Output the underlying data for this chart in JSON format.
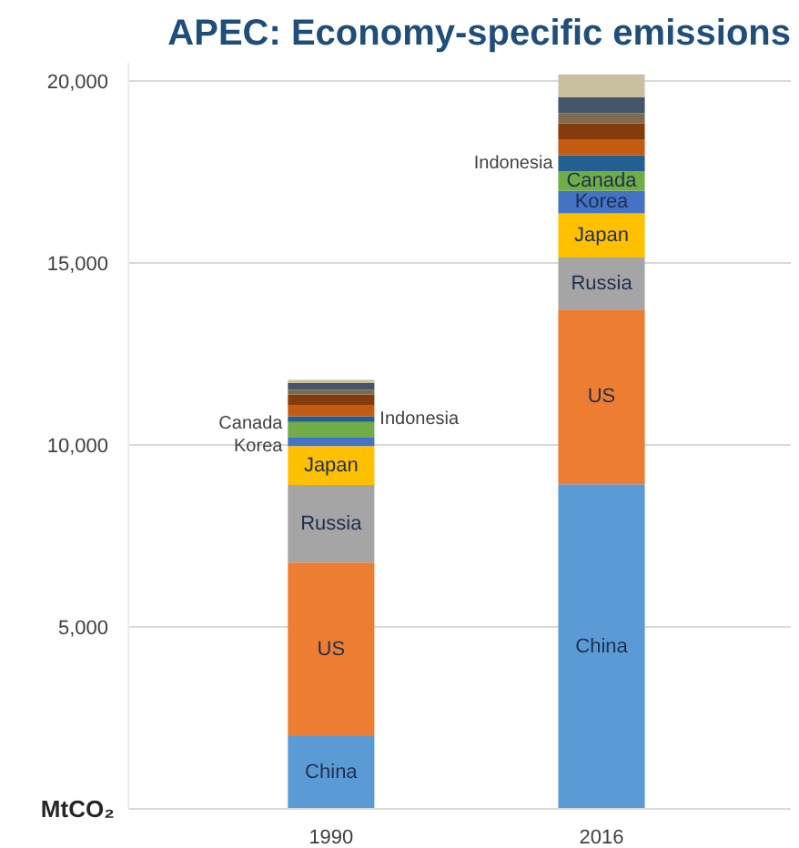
{
  "chart_data": {
    "type": "bar",
    "stacked": true,
    "title": "APEC: Economy-specific emissions",
    "ylabel": "MtCO₂",
    "categories": [
      "1990",
      "2016"
    ],
    "series": [
      {
        "name": "China",
        "color": "#5b9bd5",
        "values": [
          2000,
          8920
        ]
      },
      {
        "name": "US",
        "color": "#ed7d31",
        "values": [
          4770,
          4800
        ]
      },
      {
        "name": "Russia",
        "color": "#a5a5a5",
        "values": [
          2130,
          1430
        ]
      },
      {
        "name": "Japan",
        "color": "#ffc000",
        "values": [
          1070,
          1210
        ]
      },
      {
        "name": "Korea",
        "color": "#4472c4",
        "values": [
          250,
          620
        ]
      },
      {
        "name": "Canada",
        "color": "#70ad47",
        "values": [
          410,
          530
        ]
      },
      {
        "name": "Indonesia",
        "color": "#255e91",
        "values": [
          160,
          450
        ]
      },
      {
        "color": "#c55a11",
        "values": [
          290,
          440
        ]
      },
      {
        "color": "#843c0c",
        "values": [
          300,
          440
        ]
      },
      {
        "color": "#7f6a4f",
        "values": [
          140,
          270
        ]
      },
      {
        "color": "#44546a",
        "values": [
          180,
          440
        ]
      },
      {
        "color": "#c9c0a0",
        "values": [
          90,
          630
        ]
      }
    ],
    "ylim": [
      0,
      20500
    ],
    "yticks": [
      {
        "value": 5000,
        "label": "5,000"
      },
      {
        "value": 10000,
        "label": "10,000"
      },
      {
        "value": 15000,
        "label": "15,000"
      },
      {
        "value": 20000,
        "label": "20,000"
      }
    ],
    "grid": "y"
  }
}
